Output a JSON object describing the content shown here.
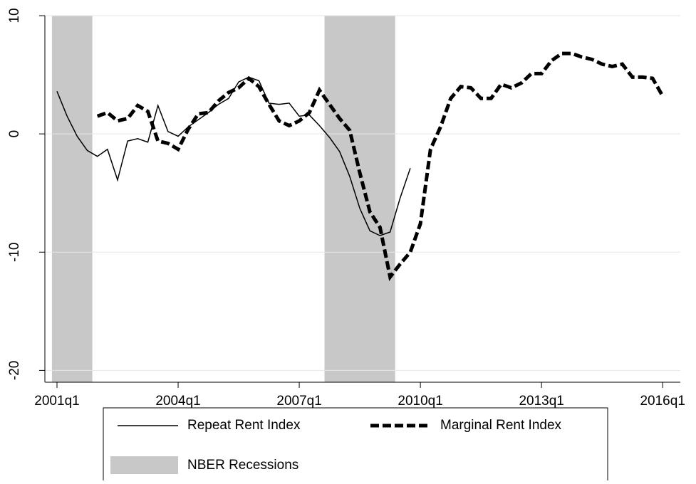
{
  "chart_data": {
    "type": "line",
    "x": [
      "2001q1",
      "2001q2",
      "2001q3",
      "2001q4",
      "2002q1",
      "2002q2",
      "2002q3",
      "2002q4",
      "2003q1",
      "2003q2",
      "2003q3",
      "2003q4",
      "2004q1",
      "2004q2",
      "2004q3",
      "2004q4",
      "2005q1",
      "2005q2",
      "2005q3",
      "2005q4",
      "2006q1",
      "2006q2",
      "2006q3",
      "2006q4",
      "2007q1",
      "2007q2",
      "2007q3",
      "2007q4",
      "2008q1",
      "2008q2",
      "2008q3",
      "2008q4",
      "2009q1",
      "2009q2",
      "2009q3",
      "2009q4",
      "2010q1",
      "2010q2",
      "2010q3",
      "2010q4",
      "2011q1",
      "2011q2",
      "2011q3",
      "2011q4",
      "2012q1",
      "2012q2",
      "2012q3",
      "2012q4",
      "2013q1",
      "2013q2",
      "2013q3",
      "2013q4",
      "2014q1",
      "2014q2",
      "2014q3",
      "2014q4",
      "2015q1",
      "2015q2",
      "2015q3",
      "2015q4",
      "2016q1"
    ],
    "series": [
      {
        "name": "Repeat Rent Index",
        "color": "#000000",
        "dashed": false,
        "values": [
          3.6,
          1.5,
          -0.2,
          -1.4,
          -1.9,
          -1.3,
          -3.9,
          -0.6,
          -0.4,
          -0.7,
          2.4,
          0.2,
          -0.2,
          0.6,
          1.2,
          1.8,
          2.5,
          3.0,
          4.4,
          4.8,
          4.5,
          2.6,
          2.5,
          2.6,
          1.5,
          1.6,
          0.7,
          -0.3,
          -1.5,
          -3.6,
          -6.3,
          -8.2,
          -8.6,
          -8.3,
          -5.4,
          -2.9,
          null,
          null,
          null,
          null,
          null,
          null,
          null,
          null,
          null,
          null,
          null,
          null,
          null,
          null,
          null,
          null,
          null,
          null,
          null,
          null,
          null,
          null,
          null,
          null,
          null
        ]
      },
      {
        "name": "Marginal Rent Index",
        "color": "#000000",
        "dashed": true,
        "values": [
          null,
          null,
          null,
          null,
          1.5,
          1.8,
          1.1,
          1.3,
          2.4,
          1.9,
          -0.6,
          -0.8,
          -1.3,
          0.4,
          1.7,
          1.8,
          2.8,
          3.5,
          3.9,
          4.7,
          4.0,
          2.5,
          1.1,
          0.7,
          1.1,
          1.8,
          3.7,
          2.5,
          1.3,
          0.3,
          -3.3,
          -6.6,
          -7.9,
          -12.1,
          -11.0,
          -10.0,
          -7.6,
          -1.3,
          0.6,
          3.0,
          4.0,
          3.9,
          3.0,
          3.0,
          4.2,
          3.9,
          4.3,
          5.1,
          5.1,
          6.2,
          6.8,
          6.8,
          6.5,
          6.3,
          5.9,
          5.7,
          5.9,
          4.8,
          4.8,
          4.7,
          3.2
        ]
      }
    ],
    "recessions": {
      "name": "NBER Recessions",
      "color": "#c8c8c8",
      "periods": [
        {
          "start": "2001q1",
          "end": "2001q4"
        },
        {
          "start": "2007q4",
          "end": "2009q2"
        }
      ]
    },
    "ylim": [
      -21,
      10
    ],
    "yticks": [
      -20,
      -10,
      0,
      10
    ],
    "xticks": [
      "2001q1",
      "2004q1",
      "2007q1",
      "2010q1",
      "2013q1",
      "2016q1"
    ],
    "grid": true
  }
}
